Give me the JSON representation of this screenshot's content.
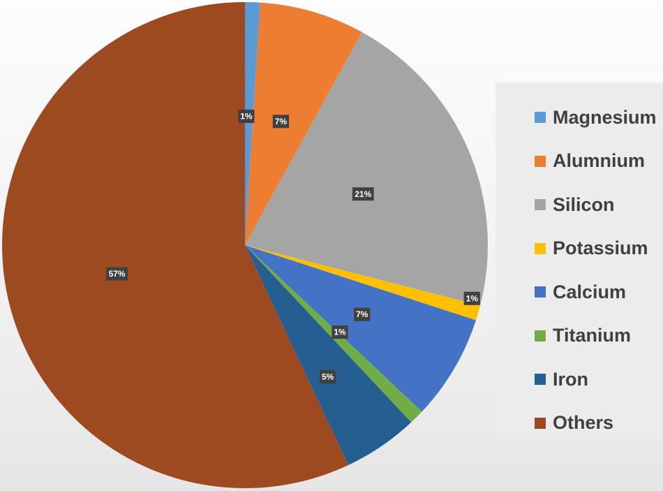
{
  "chart_data": {
    "type": "pie",
    "categories": [
      "Magnesium",
      "Alumnium",
      "Silicon",
      "Potassium",
      "Calcium",
      "Titanium",
      "Iron",
      "Others"
    ],
    "values": [
      1,
      7,
      21,
      1,
      7,
      1,
      5,
      57
    ],
    "data_labels": [
      "1%",
      "7%",
      "21%",
      "1%",
      "7%",
      "1%",
      "5%",
      "57%"
    ],
    "colors": [
      "#5b9bd5",
      "#ed7d31",
      "#a5a5a5",
      "#ffc000",
      "#4472c4",
      "#70ad47",
      "#255e91",
      "#9e4a21"
    ],
    "start_angle_deg": 0,
    "direction": "clockwise",
    "legend_position": "right",
    "title": ""
  }
}
